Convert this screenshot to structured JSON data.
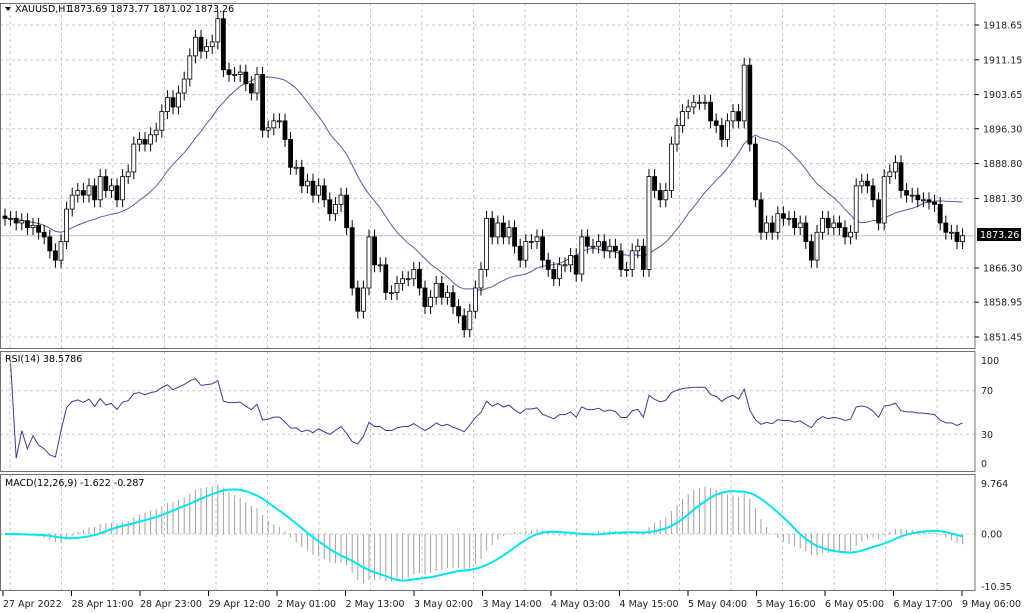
{
  "main_pane": {
    "symbol_label": "XAUUSD,H1",
    "ohlc_label": "1873.69 1873.77 1871.02 1873.26",
    "current_price": 1873.26,
    "current_price_label": "1873.26",
    "price_ticks": [
      "1918.65",
      "1911.15",
      "1903.65",
      "1896.30",
      "1888.80",
      "1881.30",
      "1866.30",
      "1858.95",
      "1851.45"
    ]
  },
  "rsi_pane": {
    "label": "RSI(14) 38.5786",
    "ticks": [
      "100",
      "70",
      "30",
      "0"
    ]
  },
  "macd_pane": {
    "label": "MACD(12,26,9) -1.622 -0.287",
    "ticks": [
      "9.764",
      "0.00",
      "-10.35"
    ]
  },
  "time_axis": [
    "27 Apr 2022",
    "28 Apr 11:00",
    "28 Apr 23:00",
    "29 Apr 12:00",
    "2 May 01:00",
    "2 May 13:00",
    "3 May 02:00",
    "3 May 14:00",
    "4 May 03:00",
    "4 May 15:00",
    "5 May 04:00",
    "5 May 16:00",
    "6 May 05:00",
    "6 May 17:00",
    "9 May 06:00"
  ],
  "colors": {
    "ma": "#5a5aa8",
    "rsi": "#3c3c96",
    "macd_signal": "#00e5f0",
    "macd_hist": "#a0a0a0",
    "grid": "#c8c8c8",
    "bull_body": "#ffffff",
    "bear_body": "#000000"
  },
  "chart_data": {
    "type": "candlestick",
    "timeframe": "H1",
    "ylim": [
      1847,
      1922
    ],
    "closes": [
      1877,
      1877,
      1876,
      1876.5,
      1875,
      1875.5,
      1874,
      1873,
      1870,
      1868,
      1872,
      1879,
      1882,
      1883,
      1882,
      1884,
      1881,
      1886,
      1883,
      1884,
      1881,
      1886,
      1887,
      1893,
      1894,
      1893,
      1895,
      1896,
      1900,
      1903,
      1901,
      1904,
      1907,
      1912,
      1916,
      1913,
      1914,
      1915,
      1920,
      1909,
      1908,
      1908,
      1908.5,
      1906,
      1904,
      1908,
      1896,
      1896.5,
      1898,
      1898,
      1894,
      1888,
      1888,
      1884,
      1885,
      1882,
      1884,
      1881,
      1878,
      1880,
      1882,
      1875,
      1862,
      1857,
      1862,
      1873,
      1867,
      1867,
      1861,
      1861,
      1863,
      1864,
      1864,
      1866,
      1862,
      1858,
      1860,
      1863,
      1860,
      1861,
      1858,
      1856,
      1853,
      1857,
      1862,
      1866,
      1877,
      1873,
      1876,
      1873,
      1875,
      1871,
      1868,
      1872,
      1872,
      1873,
      1868,
      1866,
      1864,
      1867,
      1867,
      1869,
      1865,
      1873,
      1871,
      1871,
      1872,
      1870,
      1871,
      1870,
      1866,
      1866,
      1870,
      1871,
      1866,
      1886,
      1883,
      1881,
      1883,
      1893,
      1897,
      1900,
      1901,
      1902,
      1902,
      1902,
      1898,
      1897,
      1894,
      1898,
      1900,
      1898,
      1910,
      1893,
      1881,
      1874,
      1876,
      1874,
      1878,
      1877,
      1877,
      1875,
      1876,
      1872,
      1868,
      1874,
      1877,
      1875,
      1876,
      1875,
      1873,
      1874,
      1884,
      1885,
      1884,
      1881,
      1876,
      1886,
      1887,
      1889,
      1883,
      1882,
      1882,
      1881,
      1881,
      1880.5,
      1880,
      1876,
      1874,
      1874,
      1872,
      1873.26
    ],
    "ma_period": 20,
    "rsi": {
      "period": 14,
      "levels": [
        30,
        70
      ],
      "ylim": [
        0,
        100
      ]
    },
    "macd": {
      "fast": 12,
      "slow": 26,
      "signal": 9,
      "ylim": [
        -10.35,
        9.764
      ]
    }
  }
}
